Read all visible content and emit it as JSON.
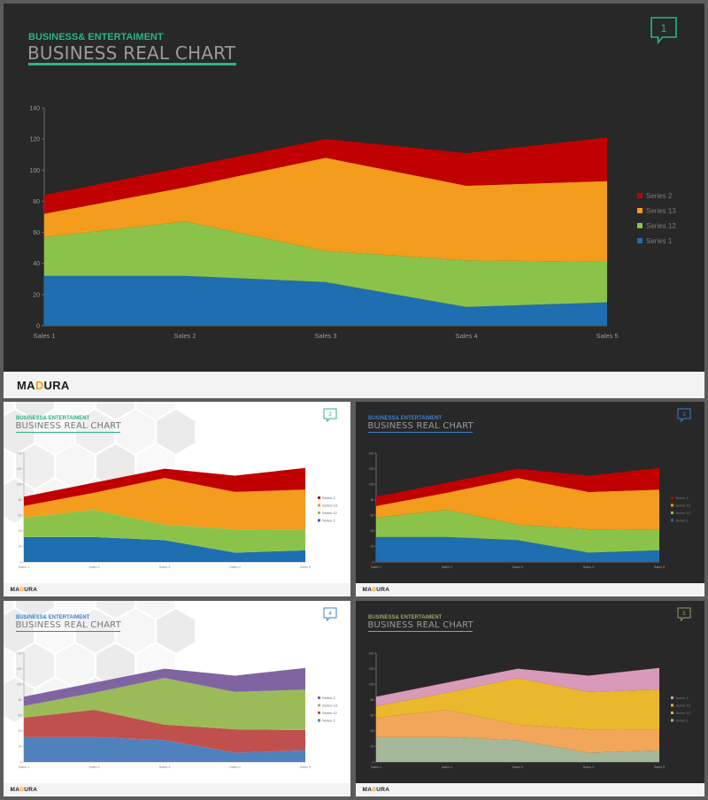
{
  "logo": {
    "part1": "MA",
    "part2": "D",
    "part3": "URA"
  },
  "slides": [
    {
      "kicker": "BUSINESS& ENTERTAIMENT",
      "title": "BUSINESS REAL CHART",
      "badge": "1",
      "accent": "#2bb38a",
      "colors": [
        "#1e6eb0",
        "#8bc34a",
        "#f39c1d",
        "#c00000"
      ],
      "theme": "dark"
    },
    {
      "kicker": "BUSINESS& ENTERTAIMENT",
      "title": "BUSINESS REAL CHART",
      "badge": "2",
      "accent": "#2bb38a",
      "colors": [
        "#1e6eb0",
        "#8bc34a",
        "#f39c1d",
        "#c00000"
      ],
      "theme": "light"
    },
    {
      "kicker": "BUSINESS& ENTERTAIMENT",
      "title": "BUSINESS REAL CHART",
      "badge": "3",
      "accent": "#3a7fd0",
      "colors": [
        "#1e6eb0",
        "#8bc34a",
        "#f39c1d",
        "#c00000"
      ],
      "theme": "dark"
    },
    {
      "kicker": "BUSINESS& ENTERTAIMENT",
      "title": "BUSINESS REAL CHART",
      "badge": "4",
      "accent": "#3a7fd0",
      "colors": [
        "#4f81bd",
        "#c0504d",
        "#9bbb59",
        "#8064a2"
      ],
      "theme": "light"
    },
    {
      "kicker": "BUSINESS& ENTERTAIMENT",
      "title": "BUSINESS REAL CHART",
      "badge": "5",
      "accent": "#9aa06a",
      "colors": [
        "#a6b89a",
        "#f2a65a",
        "#e9b82c",
        "#d999b9"
      ],
      "theme": "dark"
    }
  ],
  "chart_data": {
    "type": "area",
    "stacked": true,
    "categories": [
      "Sales 1",
      "Sales 2",
      "Sales 3",
      "Sales 4",
      "Sales 5"
    ],
    "series": [
      {
        "name": "Series 1",
        "values": [
          32,
          32,
          28,
          12,
          15
        ]
      },
      {
        "name": "Series 12",
        "values": [
          25,
          35,
          20,
          30,
          26
        ]
      },
      {
        "name": "Series 13",
        "values": [
          15,
          22,
          60,
          48,
          52
        ]
      },
      {
        "name": "Series 2",
        "values": [
          12,
          13,
          12,
          21,
          28
        ]
      }
    ],
    "ylim": [
      0,
      140
    ],
    "yticks": [
      0,
      20,
      40,
      60,
      80,
      100,
      120,
      140
    ],
    "legend_position": "right"
  }
}
